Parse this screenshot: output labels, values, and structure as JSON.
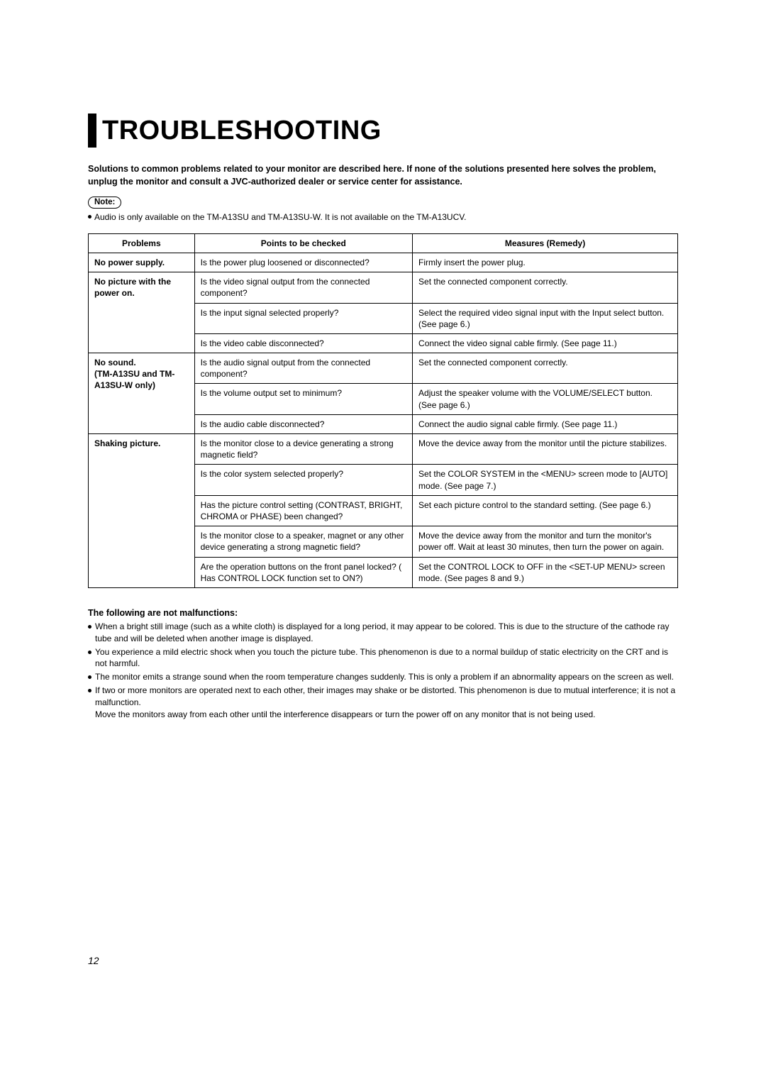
{
  "title": "TROUBLESHOOTING",
  "intro": "Solutions to common problems related to your monitor are described here. If none of the solutions presented here solves the problem, unplug the monitor and consult a JVC-authorized dealer or service center for assistance.",
  "note_label": "Note:",
  "note_text": "Audio is only available on the TM-A13SU and TM-A13SU-W.  It is not available on the TM-A13UCV.",
  "table": {
    "headers": {
      "problems": "Problems",
      "points": "Points to be checked",
      "measures": "Measures (Remedy)"
    },
    "rows": {
      "r1": {
        "problem": "No power supply.",
        "point": "Is the power plug loosened or disconnected?",
        "measure": "Firmly insert the power plug."
      },
      "r2": {
        "problem": "No picture with the power on.",
        "point": "Is the video signal output from the connected component?",
        "measure": "Set the connected component correctly."
      },
      "r3": {
        "point": "Is the input signal selected properly?",
        "measure": "Select the required video signal input with the Input select button. (See page 6.)"
      },
      "r4": {
        "point": "Is the video cable disconnected?",
        "measure": "Connect the video signal cable firmly. (See page 11.)"
      },
      "r5": {
        "problem": "No sound.\n(TM-A13SU and TM-A13SU-W only)",
        "point": "Is the audio signal output from the connected component?",
        "measure": "Set the connected component correctly."
      },
      "r6": {
        "point": "Is the volume output set to minimum?",
        "measure": "Adjust the speaker volume with the VOLUME/SELECT button. (See page 6.)"
      },
      "r7": {
        "point": "Is the audio cable disconnected?",
        "measure": "Connect the audio signal cable firmly. (See page 11.)"
      },
      "r8": {
        "problem": "Shaking picture.",
        "point": "Is the monitor close to a device generating a strong magnetic field?",
        "measure": "Move the device away from the monitor until the picture stabilizes."
      },
      "r9": {
        "point": "Is the color system selected properly?",
        "measure": "Set the COLOR SYSTEM in the <MENU> screen mode to [AUTO] mode. (See page 7.)"
      },
      "r10": {
        "point": "Has the picture control setting (CONTRAST, BRIGHT, CHROMA or PHASE) been changed?",
        "measure": "Set each picture control to the standard setting. (See page 6.)"
      },
      "r11": {
        "point": "Is the monitor close to a speaker, magnet or any other device generating a strong magnetic field?",
        "measure": "Move the device away from the monitor and turn the monitor's power off. Wait at least 30 minutes, then turn the power on again."
      },
      "r12": {
        "point": "Are the operation buttons on the front panel locked? ( Has CONTROL LOCK function set to ON?)",
        "measure": "Set  the CONTROL LOCK to OFF in the <SET-UP MENU> screen mode. (See pages 8 and 9.)"
      }
    }
  },
  "not_malfunctions": {
    "title": "The following are not malfunctions:",
    "items": {
      "i1": "When a bright still image (such as a white cloth) is displayed for a long period, it may appear to be colored. This is due to the structure of the cathode ray tube and will be deleted when another image is displayed.",
      "i2": "You experience a mild electric shock when you touch the picture tube. This phenomenon is due to a normal buildup of static electricity on the CRT and is not harmful.",
      "i3": "The monitor emits a strange sound when the room temperature changes suddenly. This is only a problem if an abnormality appears on the screen as well.",
      "i4": "If two or more monitors are operated next to each other, their images may shake or be distorted.  This phenomenon is due to mutual interference; it is not a malfunction.\nMove the monitors away from each other until the interference disappears or turn the power off on any monitor that is not being used."
    }
  },
  "page_number": "12"
}
